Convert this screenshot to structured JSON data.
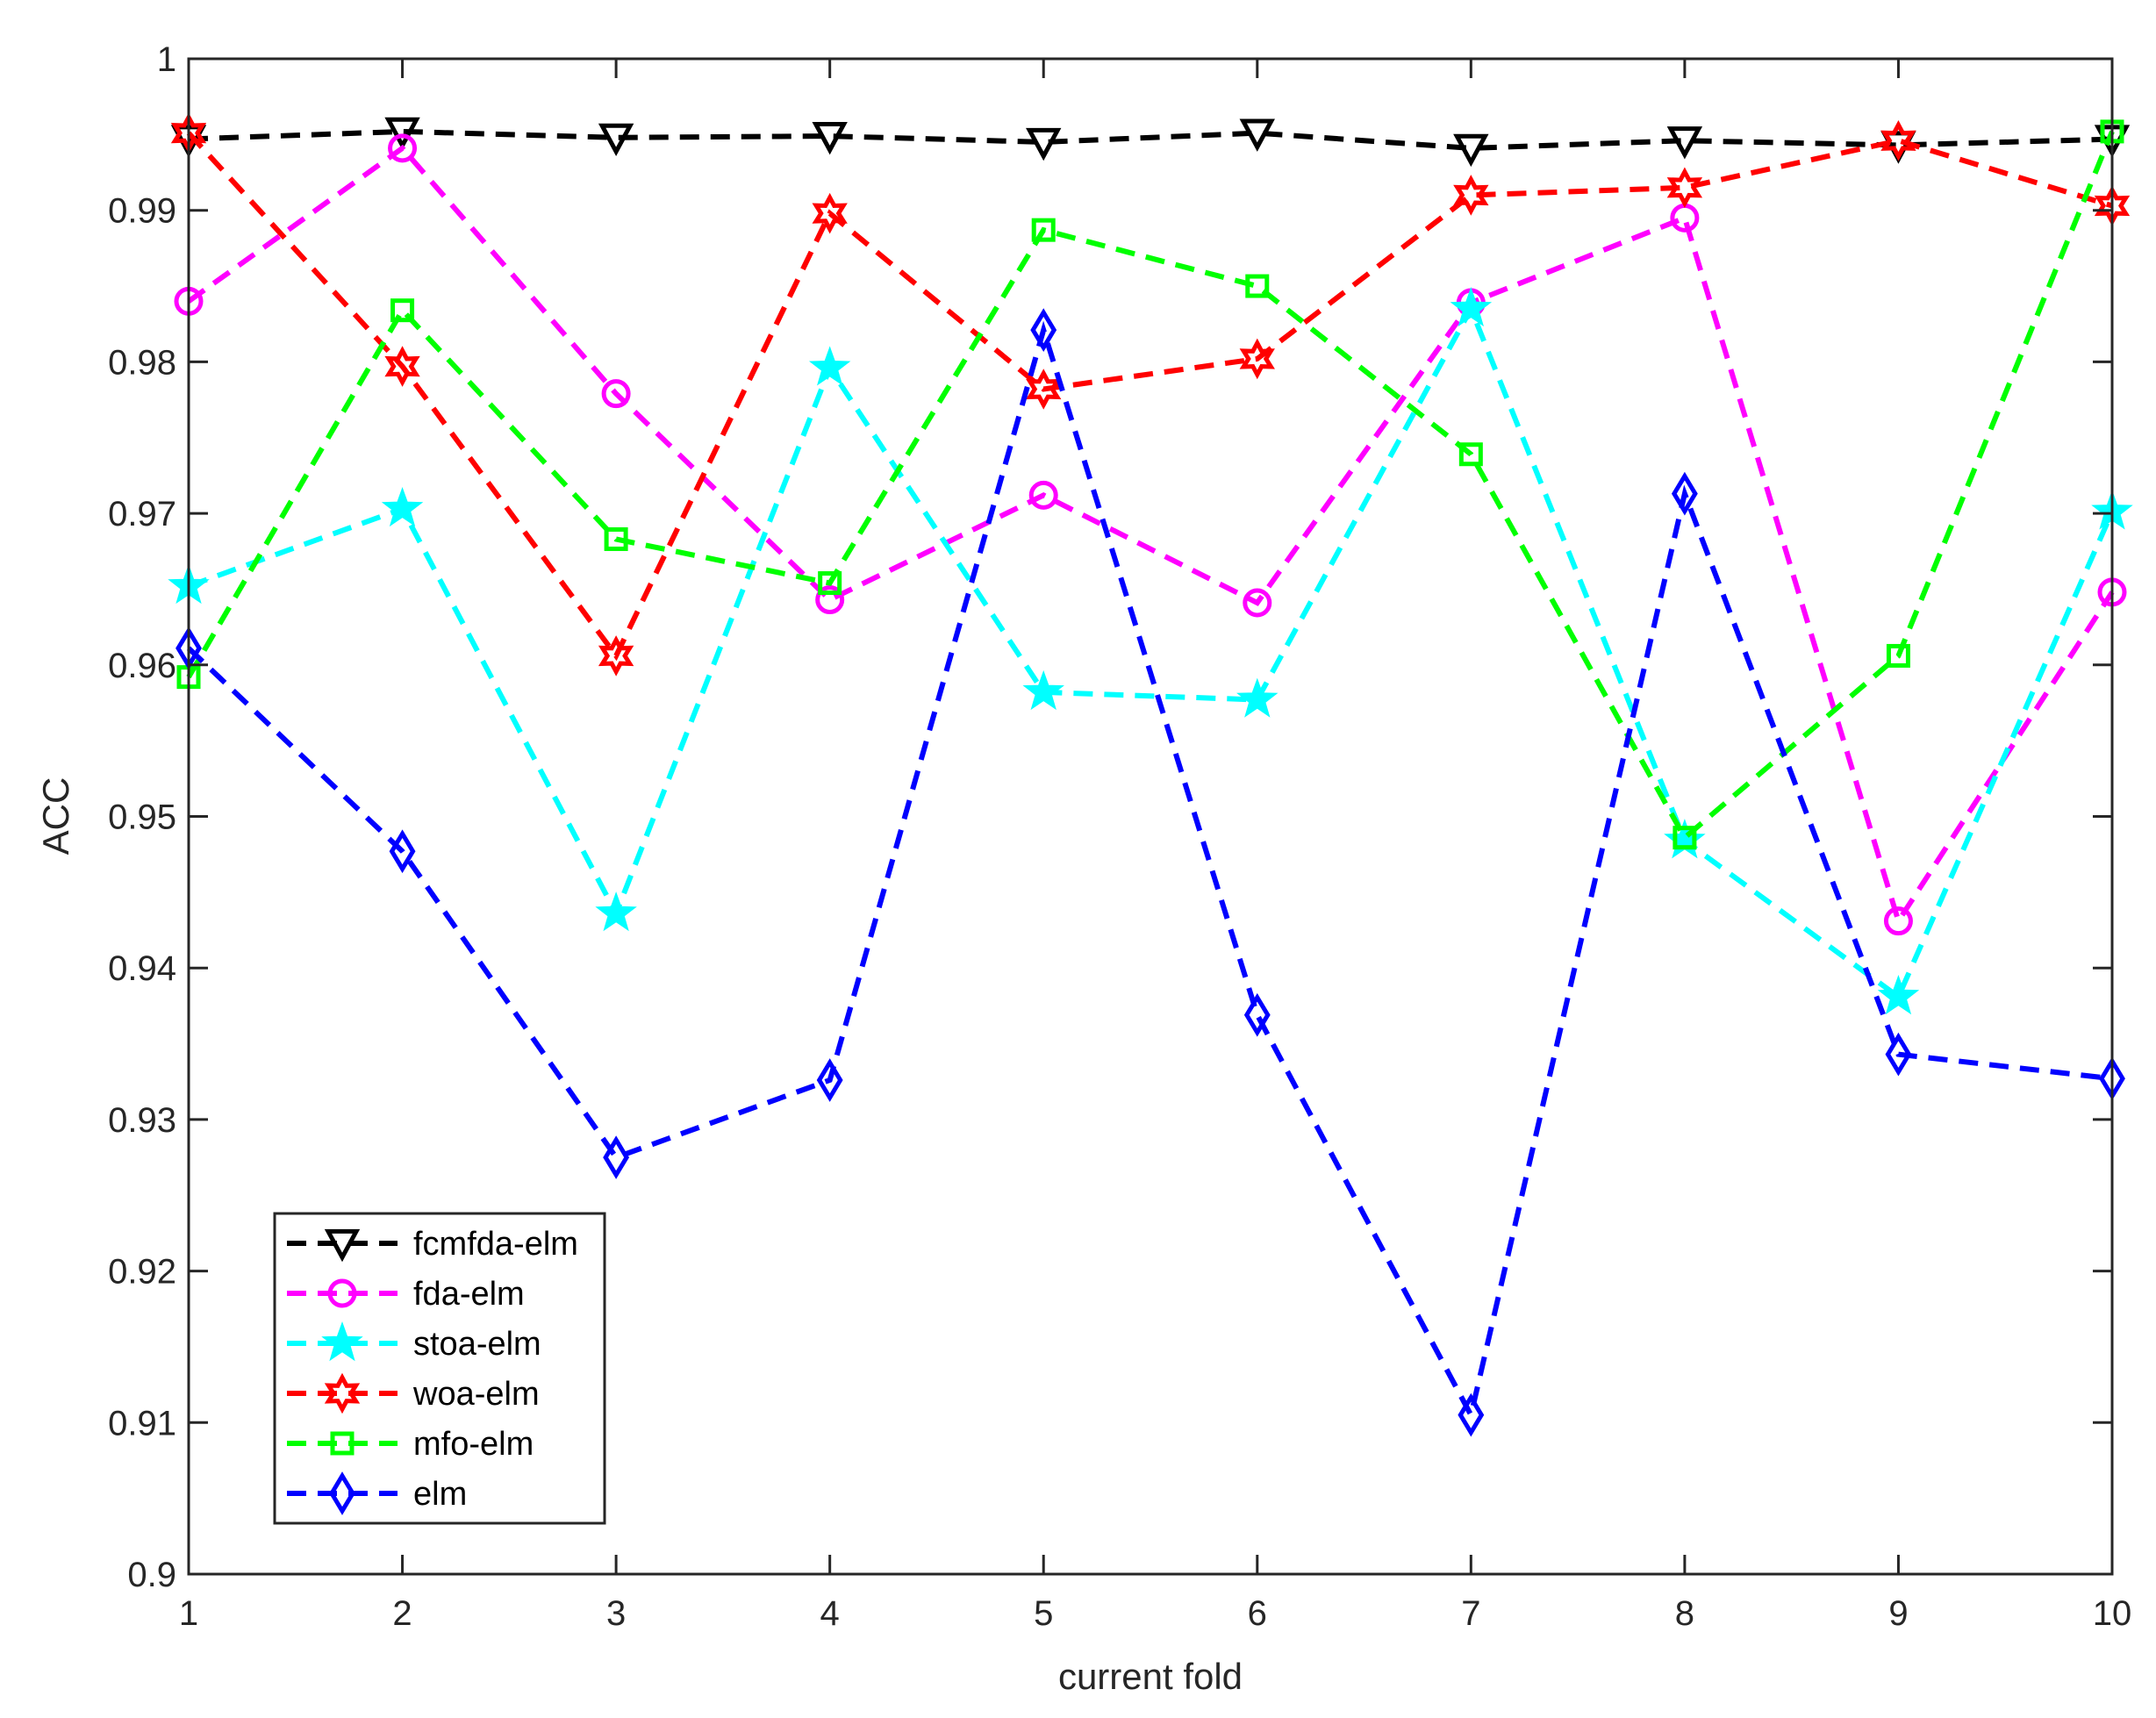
{
  "chart_data": {
    "type": "line",
    "title": "",
    "xlabel": "current fold",
    "ylabel": "ACC",
    "x": [
      1,
      2,
      3,
      4,
      5,
      6,
      7,
      8,
      9,
      10
    ],
    "xlim": [
      1,
      10
    ],
    "ylim": [
      0.9,
      1.0
    ],
    "xticks": [
      "1",
      "2",
      "3",
      "4",
      "5",
      "6",
      "7",
      "8",
      "9",
      "10"
    ],
    "yticks": [
      "0.9",
      "0.91",
      "0.92",
      "0.93",
      "0.94",
      "0.95",
      "0.96",
      "0.97",
      "0.98",
      "0.99",
      "1"
    ],
    "grid": false,
    "legend_position": "bottom-left",
    "series": [
      {
        "name": "fcmfda-elm",
        "color": "#000000",
        "marker": "triangle-down",
        "values": [
          0.9947,
          0.9952,
          0.9948,
          0.9949,
          0.9945,
          0.9951,
          0.9941,
          0.9946,
          0.9943,
          0.9947
        ]
      },
      {
        "name": "fda-elm",
        "color": "#ff00ff",
        "marker": "circle",
        "values": [
          0.984,
          0.9941,
          0.9779,
          0.9643,
          0.9712,
          0.9641,
          0.9839,
          0.9895,
          0.9431,
          0.9648
        ]
      },
      {
        "name": "stoa-elm",
        "color": "#00ffff",
        "marker": "star",
        "values": [
          0.9652,
          0.9703,
          0.9436,
          0.9796,
          0.9582,
          0.9577,
          0.9835,
          0.9484,
          0.9381,
          0.9701
        ]
      },
      {
        "name": "woa-elm",
        "color": "#ff0000",
        "marker": "hexagram",
        "values": [
          0.9951,
          0.9797,
          0.9606,
          0.9898,
          0.9782,
          0.9802,
          0.991,
          0.9915,
          0.9946,
          0.9903
        ]
      },
      {
        "name": "mfo-elm",
        "color": "#00ff00",
        "marker": "square",
        "values": [
          0.9592,
          0.9834,
          0.9683,
          0.9654,
          0.9887,
          0.985,
          0.9739,
          0.9486,
          0.9606,
          0.9952
        ]
      },
      {
        "name": "elm",
        "color": "#0000ff",
        "marker": "diamond",
        "values": [
          0.9611,
          0.9477,
          0.9275,
          0.9326,
          0.9821,
          0.9369,
          0.9105,
          0.9713,
          0.9343,
          0.9327
        ]
      }
    ]
  }
}
